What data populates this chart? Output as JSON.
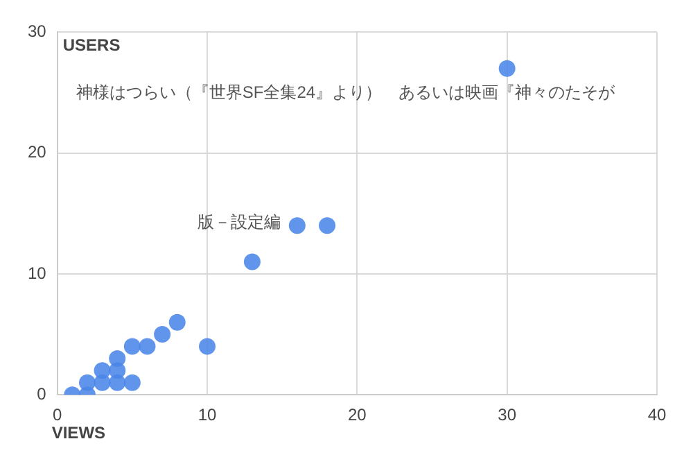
{
  "chart_data": {
    "type": "scatter",
    "xlabel": "VIEWS",
    "ylabel": "USERS",
    "x": [
      1,
      2,
      2,
      3,
      3,
      4,
      4,
      4,
      5,
      5,
      6,
      7,
      8,
      10,
      13,
      16,
      18,
      30
    ],
    "values": [
      0,
      0,
      1,
      1,
      2,
      1,
      2,
      3,
      1,
      4,
      4,
      5,
      6,
      4,
      11,
      14,
      14,
      27
    ],
    "color": "#4a86e8",
    "xlim": [
      0,
      40
    ],
    "xticks": [
      0,
      10,
      20,
      30,
      40
    ],
    "ylim": [
      0,
      30
    ],
    "yticks": [
      0,
      10,
      20,
      30
    ],
    "grid": true,
    "legend": false,
    "marker": "circle",
    "annotations": [
      {
        "text": "神様はつらい（『世界SF全集24』より）　あるいは映画『神々のたそが",
        "x": 30,
        "y": 27
      },
      {
        "text": "版－設定編",
        "x": 16,
        "y": 14
      }
    ]
  }
}
